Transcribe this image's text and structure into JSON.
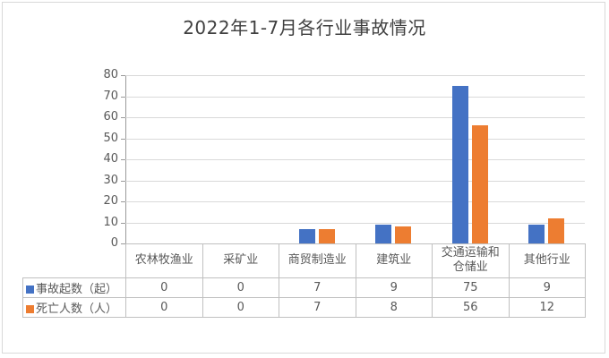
{
  "chart_data": {
    "type": "bar",
    "title": "2022年1-7月各行业事故情况",
    "categories": [
      "农林牧渔业",
      "采矿业",
      "商贸制造业",
      "建筑业",
      "交通运输和仓储业",
      "其他行业"
    ],
    "series": [
      {
        "name": "事故起数（起）",
        "color": "#4472C4",
        "values": [
          0,
          0,
          7,
          9,
          75,
          9
        ]
      },
      {
        "name": "死亡人数（人）",
        "color": "#ED7D31",
        "values": [
          0,
          0,
          7,
          8,
          56,
          12
        ]
      }
    ],
    "xlabel": "",
    "ylabel": "",
    "ylim": [
      0,
      80
    ],
    "yticks": [
      0,
      10,
      20,
      30,
      40,
      50,
      60,
      70,
      80
    ],
    "grid": true,
    "legend_position": "data-table-row-labels"
  },
  "colors": {
    "series_accidents": "#4472C4",
    "series_deaths": "#ED7D31",
    "gridline": "#d9d9d9",
    "axis_line": "#9a9a9a",
    "table_border": "#c0c0c0",
    "title_text": "#404040",
    "label_text": "#595959",
    "background": "#ffffff",
    "frame_border": "#d9d9d9"
  }
}
